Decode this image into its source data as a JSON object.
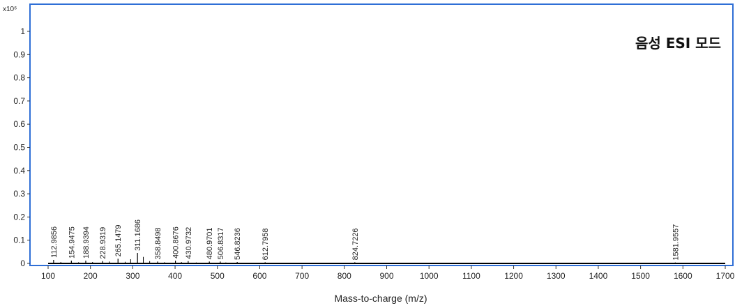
{
  "chart_data": {
    "type": "line",
    "title": "음성 ESI 모드",
    "xlabel": "Mass-to-charge (m/z)",
    "ylabel": "",
    "y_scale_label": "x10⁶",
    "xlim": [
      55,
      1705
    ],
    "ylim": [
      0,
      1.0
    ],
    "x_ticks": [
      100,
      200,
      300,
      400,
      500,
      600,
      700,
      800,
      900,
      1000,
      1100,
      1200,
      1300,
      1400,
      1500,
      1600,
      1700
    ],
    "y_ticks": [
      0,
      0.1,
      0.2,
      0.3,
      0.4,
      0.5,
      0.6,
      0.7,
      0.8,
      0.9,
      1
    ],
    "y_tick_labels": [
      "0",
      "0.1",
      "0.2",
      "0.3",
      "0.4",
      "0.5",
      "0.6",
      "0.7",
      "0.8",
      "0.9",
      "1"
    ],
    "grid": false,
    "legend": "none",
    "colors": {
      "frame": "#2f6fd6",
      "spectrum": "#000000"
    },
    "peaks": [
      {
        "mz": 112.9856,
        "intensity": 0.015,
        "label": "112.9856"
      },
      {
        "mz": 154.9475,
        "intensity": 0.012,
        "label": "154.9475"
      },
      {
        "mz": 188.9394,
        "intensity": 0.012,
        "label": "188.9394"
      },
      {
        "mz": 228.9319,
        "intensity": 0.01,
        "label": "228.9319"
      },
      {
        "mz": 265.1479,
        "intensity": 0.02,
        "label": "265.1479"
      },
      {
        "mz": 311.1686,
        "intensity": 0.045,
        "label": "311.1686"
      },
      {
        "mz": 358.8498,
        "intensity": 0.008,
        "label": "358.8498"
      },
      {
        "mz": 400.8676,
        "intensity": 0.012,
        "label": "400.8676"
      },
      {
        "mz": 430.9732,
        "intensity": 0.01,
        "label": "430.9732"
      },
      {
        "mz": 480.9701,
        "intensity": 0.008,
        "label": "480.9701"
      },
      {
        "mz": 506.8317,
        "intensity": 0.008,
        "label": "506.8317"
      },
      {
        "mz": 546.8236,
        "intensity": 0.006,
        "label": "546.8236"
      },
      {
        "mz": 612.7958,
        "intensity": 0.005,
        "label": "612.7958"
      },
      {
        "mz": 824.7226,
        "intensity": 0.005,
        "label": "824.7226"
      },
      {
        "mz": 1581.9557,
        "intensity": 0.004,
        "label": "1581.9557"
      }
    ],
    "minor_peaks": [
      {
        "mz": 130,
        "intensity": 0.006
      },
      {
        "mz": 172,
        "intensity": 0.005
      },
      {
        "mz": 205,
        "intensity": 0.006
      },
      {
        "mz": 245,
        "intensity": 0.008
      },
      {
        "mz": 282,
        "intensity": 0.007
      },
      {
        "mz": 295,
        "intensity": 0.018
      },
      {
        "mz": 325,
        "intensity": 0.028
      },
      {
        "mz": 340,
        "intensity": 0.01
      },
      {
        "mz": 375,
        "intensity": 0.005
      },
      {
        "mz": 415,
        "intensity": 0.006
      },
      {
        "mz": 450,
        "intensity": 0.004
      },
      {
        "mz": 520,
        "intensity": 0.004
      },
      {
        "mz": 580,
        "intensity": 0.003
      }
    ]
  }
}
